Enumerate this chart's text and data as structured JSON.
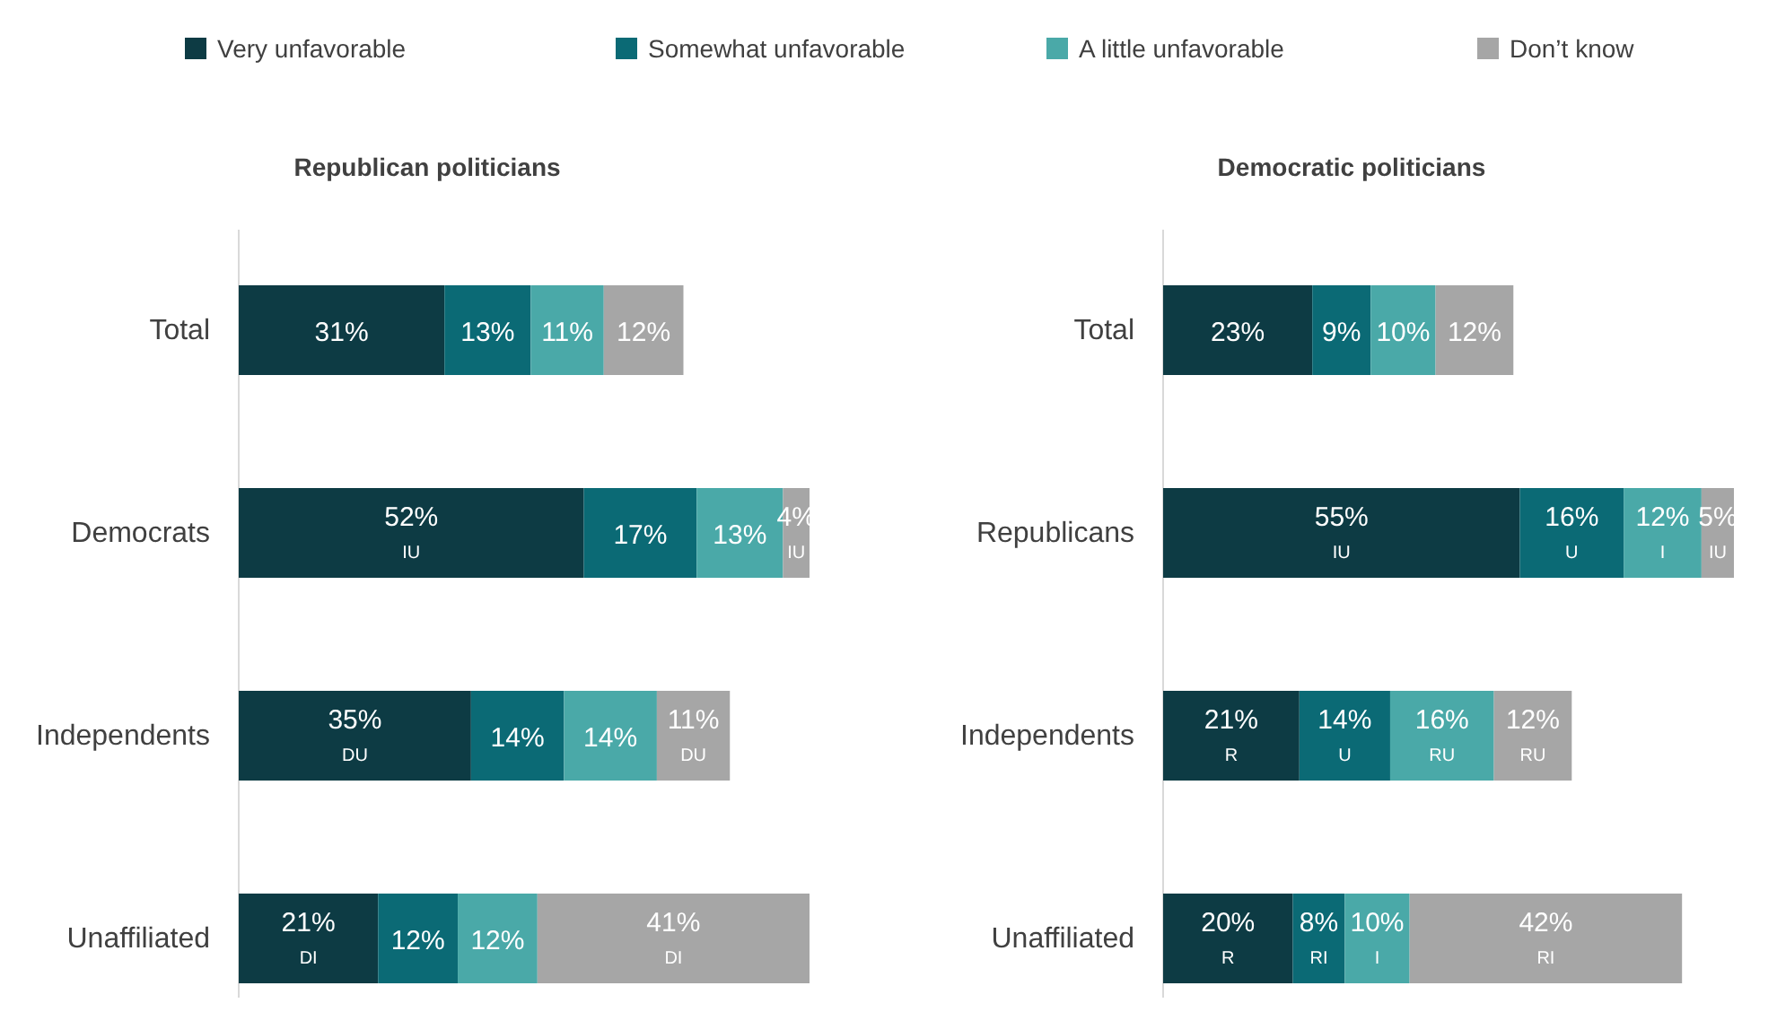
{
  "chart_data": [
    {
      "type": "bar",
      "orientation": "horizontal",
      "stacked": true,
      "title": "Republican politicians",
      "legend": "top",
      "categories": [
        "Total",
        "Democrats",
        "Independents",
        "Unaffiliated"
      ],
      "series": [
        {
          "name": "Very unfavorable",
          "color": "#0d3b44",
          "values": [
            31,
            52,
            35,
            21
          ],
          "value_labels": [
            "31%",
            "52%\nIU",
            "35%\nDU",
            "21%\nDI"
          ]
        },
        {
          "name": "Somewhat unfavorable",
          "color": "#0b6a75",
          "values": [
            13,
            17,
            14,
            12
          ],
          "value_labels": [
            "13%",
            "17%",
            "14%",
            "12%"
          ]
        },
        {
          "name": "A little unfavorable",
          "color": "#4aa9a8",
          "values": [
            11,
            13,
            14,
            12
          ],
          "value_labels": [
            "11%",
            "13%",
            "14%",
            "12%"
          ]
        },
        {
          "name": "Don’t know",
          "color": "#a6a6a6",
          "values": [
            12,
            4,
            11,
            41
          ],
          "value_labels": [
            "12%",
            "4%\nIU",
            "11%\nDU",
            "41%\nDI"
          ]
        }
      ]
    },
    {
      "type": "bar",
      "orientation": "horizontal",
      "stacked": true,
      "title": "Democratic politicians",
      "categories": [
        "Total",
        "Republicans",
        "Independents",
        "Unaffiliated"
      ],
      "series": [
        {
          "color": "#0d3b44",
          "values": [
            23,
            55,
            21,
            20
          ],
          "value_labels": [
            "23%",
            "55%\nIU",
            "21%\nR",
            "20%\nR"
          ]
        },
        {
          "color": "#0b6a75",
          "values": [
            9,
            16,
            14,
            8
          ],
          "value_labels": [
            "9%",
            "16%\nU",
            "14%\nU",
            "8%\nRI"
          ]
        },
        {
          "color": "#4aa9a8",
          "values": [
            10,
            12,
            16,
            10
          ],
          "value_labels": [
            "10%",
            "12%\nI",
            "16%\nRU",
            "10%\nI"
          ]
        },
        {
          "color": "#a6a6a6",
          "values": [
            12,
            5,
            12,
            42
          ],
          "value_labels": [
            "12%",
            "5%\nIU",
            "12%\nRU",
            "42%\nRI"
          ]
        }
      ]
    }
  ]
}
